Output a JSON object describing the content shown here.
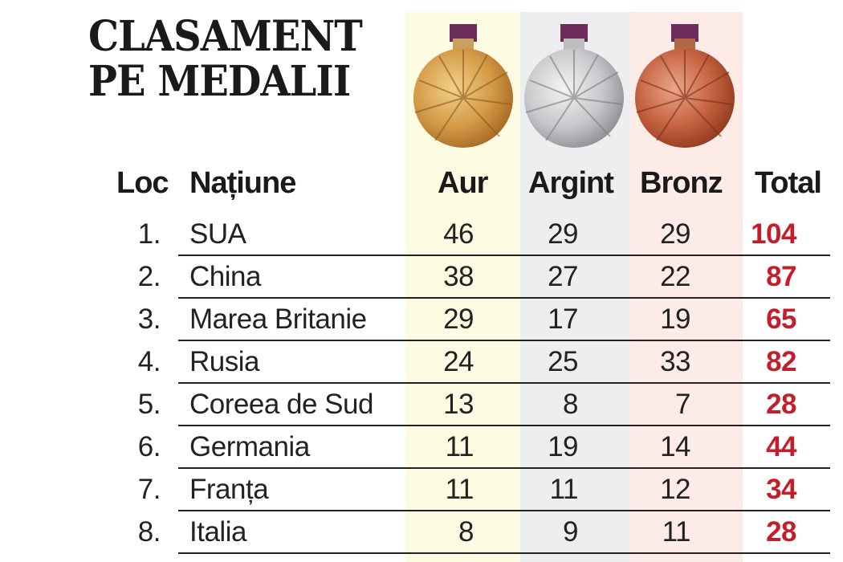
{
  "title": {
    "line1": "CLASAMENT",
    "line2": "PE MEDALII"
  },
  "headers": {
    "loc": "Loc",
    "natiune": "Națiune",
    "aur": "Aur",
    "argint": "Argint",
    "bronz": "Bronz",
    "total": "Total"
  },
  "colors": {
    "gold_band": "#fdfbe1",
    "silver_band": "#eeedf0",
    "bronze_band": "#fcebe6",
    "total_text": "#c41e2a",
    "ribbon": "#6b2c5a"
  },
  "medals": [
    "gold-medal-icon",
    "silver-medal-icon",
    "bronze-medal-icon"
  ],
  "rows": [
    {
      "loc": "1.",
      "natiune": "SUA",
      "aur": "46",
      "argint": "29",
      "bronz": "29",
      "total": "104"
    },
    {
      "loc": "2.",
      "natiune": "China",
      "aur": "38",
      "argint": "27",
      "bronz": "22",
      "total": "87"
    },
    {
      "loc": "3.",
      "natiune": "Marea Britanie",
      "aur": "29",
      "argint": "17",
      "bronz": "19",
      "total": "65"
    },
    {
      "loc": "4.",
      "natiune": "Rusia",
      "aur": "24",
      "argint": "25",
      "bronz": "33",
      "total": "82"
    },
    {
      "loc": "5.",
      "natiune": "Coreea de Sud",
      "aur": "13",
      "argint": "8",
      "bronz": "7",
      "total": "28"
    },
    {
      "loc": "6.",
      "natiune": "Germania",
      "aur": "11",
      "argint": "19",
      "bronz": "14",
      "total": "44"
    },
    {
      "loc": "7.",
      "natiune": "Franța",
      "aur": "11",
      "argint": "11",
      "bronz": "12",
      "total": "34"
    },
    {
      "loc": "8.",
      "natiune": "Italia",
      "aur": "8",
      "argint": "9",
      "bronz": "11",
      "total": "28"
    }
  ]
}
